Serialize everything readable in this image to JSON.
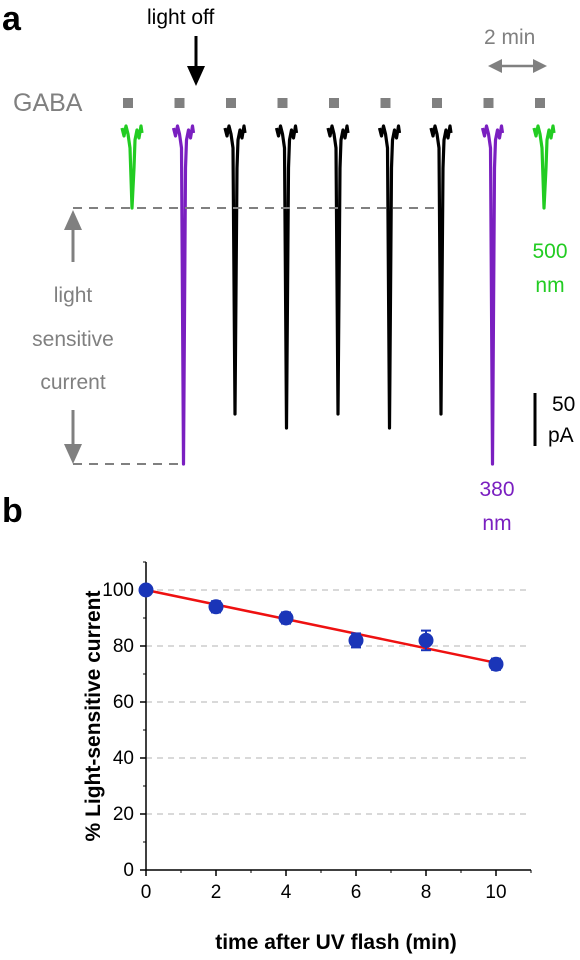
{
  "panel_a": {
    "letter": "a",
    "light_off": "light off",
    "gaba_label": "GABA",
    "time_scale_label": "2 min",
    "green_wavelength": "500",
    "green_unit": "nm",
    "purple_wavelength": "380",
    "purple_unit": "nm",
    "current_label_lines": [
      "light",
      "sensitive",
      "current"
    ],
    "scale_value": "50",
    "scale_unit": "pA",
    "colors": {
      "green": "#22cc22",
      "purple": "#7a1fc0",
      "black": "#000000",
      "gray": "#808080"
    },
    "trace_sequence": [
      "green",
      "purple",
      "black",
      "black",
      "black",
      "black",
      "black",
      "purple",
      "green"
    ]
  },
  "panel_b": {
    "letter": "b"
  },
  "chart_data": {
    "type": "scatter",
    "xlabel": "time after UV flash (min)",
    "ylabel": "% Light-sensitive current",
    "xlim": [
      0,
      11
    ],
    "ylim": [
      0,
      110
    ],
    "xticks": [
      0,
      2,
      4,
      6,
      8,
      10
    ],
    "yticks": [
      0,
      20,
      40,
      60,
      80,
      100
    ],
    "grid": "horizontal dashed",
    "x": [
      0,
      2,
      4,
      6,
      8,
      10
    ],
    "y": [
      100,
      94,
      90,
      82,
      82,
      73.5
    ],
    "yerr": [
      1,
      2,
      2,
      2.5,
      3.5,
      2
    ],
    "fit_line": {
      "x": [
        0,
        10
      ],
      "y": [
        100,
        74
      ]
    },
    "colors": {
      "points": "#1a35b8",
      "fit": "#ee1111"
    }
  }
}
